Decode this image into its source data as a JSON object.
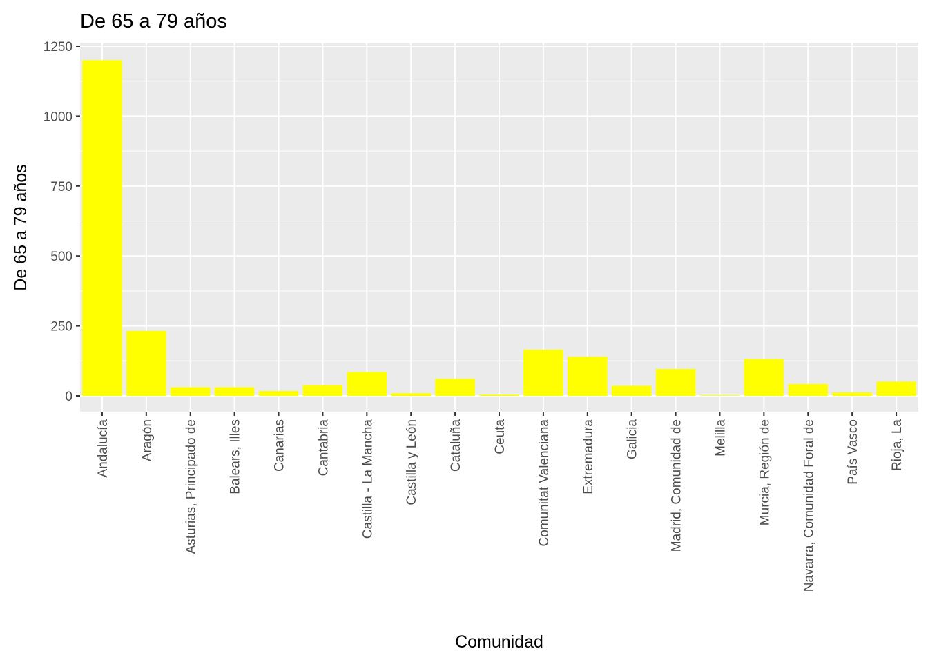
{
  "chart_data": {
    "type": "bar",
    "title": "De 65 a 79 años",
    "xlabel": "Comunidad",
    "ylabel": "De 65 a 79 años",
    "ylim": [
      -60,
      1250
    ],
    "yticks": [
      0,
      250,
      500,
      750,
      1000,
      1250
    ],
    "grid": true,
    "legend": "none",
    "bar_color": "#FFFF00",
    "panel_color": "#EBEBEB",
    "categories": [
      "Andalucía",
      "Aragón",
      "Asturias, Principado de",
      "Balears, Illes",
      "Canarias",
      "Cantabria",
      "Castilla - La Mancha",
      "Castilla y León",
      "Cataluña",
      "Ceuta",
      "Comunitat Valenciana",
      "Extremadura",
      "Galicia",
      "Madrid, Comunidad de",
      "Melilla",
      "Murcia, Región de",
      "Navarra, Comunidad Foral de",
      "País Vasco",
      "Rioja, La"
    ],
    "values": [
      1200,
      232,
      31,
      31,
      17,
      38,
      85,
      9,
      61,
      4,
      165,
      140,
      36,
      96,
      2,
      132,
      42,
      12,
      51
    ]
  }
}
